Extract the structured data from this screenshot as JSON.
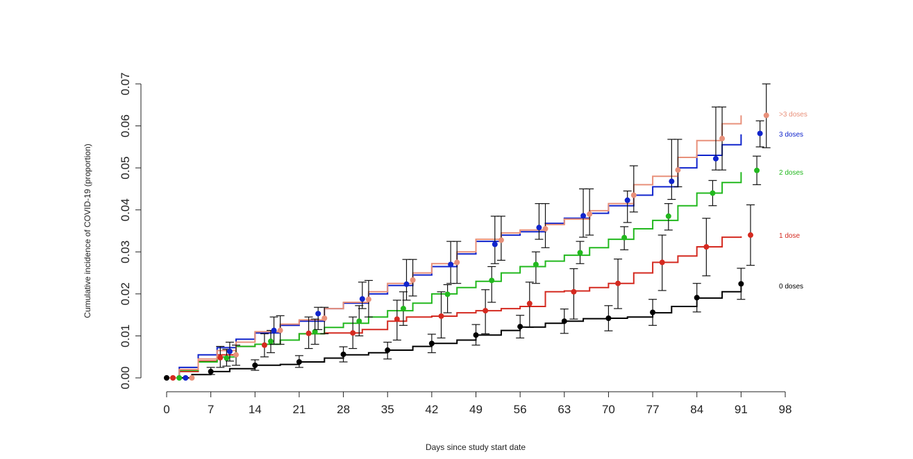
{
  "chart_data": {
    "type": "line",
    "title": "",
    "xlabel": "Days since study start date",
    "ylabel": "Cumulative incidence of COVID-19 (proportion)",
    "xlim": [
      0,
      98
    ],
    "ylim": [
      0,
      0.07
    ],
    "xticks": [
      0,
      7,
      14,
      21,
      28,
      35,
      42,
      49,
      56,
      63,
      70,
      77,
      84,
      91,
      98
    ],
    "yticks": [
      "0.00",
      "0.01",
      "0.02",
      "0.03",
      "0.04",
      "0.05",
      "0.06",
      "0.07"
    ],
    "grid": false,
    "legend": "right",
    "series": [
      {
        "name": "0 doses",
        "color": "#000000",
        "line": [
          [
            0,
            0
          ],
          [
            4,
            0.0008
          ],
          [
            7,
            0.0015
          ],
          [
            10,
            0.0022
          ],
          [
            14,
            0.003
          ],
          [
            18,
            0.0032
          ],
          [
            21,
            0.0038
          ],
          [
            25,
            0.0047
          ],
          [
            28,
            0.0055
          ],
          [
            32,
            0.006
          ],
          [
            35,
            0.0066
          ],
          [
            39,
            0.0075
          ],
          [
            42,
            0.0082
          ],
          [
            46,
            0.009
          ],
          [
            49,
            0.0102
          ],
          [
            53,
            0.0113
          ],
          [
            56,
            0.0121
          ],
          [
            60,
            0.013
          ],
          [
            63,
            0.0135
          ],
          [
            66,
            0.0141
          ],
          [
            70,
            0.0142
          ],
          [
            73,
            0.0145
          ],
          [
            77,
            0.0155
          ],
          [
            80,
            0.017
          ],
          [
            84,
            0.019
          ],
          [
            88,
            0.0205
          ],
          [
            91,
            0.022
          ]
        ],
        "points": [
          {
            "x": 0,
            "y": 0,
            "lo": 0,
            "hi": 0
          },
          {
            "x": 7,
            "y": 0.0015,
            "lo": 0.0008,
            "hi": 0.0025
          },
          {
            "x": 14,
            "y": 0.003,
            "lo": 0.0018,
            "hi": 0.0043
          },
          {
            "x": 21,
            "y": 0.0038,
            "lo": 0.0025,
            "hi": 0.0053
          },
          {
            "x": 28,
            "y": 0.0056,
            "lo": 0.0038,
            "hi": 0.0074
          },
          {
            "x": 35,
            "y": 0.0066,
            "lo": 0.0045,
            "hi": 0.0085
          },
          {
            "x": 42,
            "y": 0.0082,
            "lo": 0.006,
            "hi": 0.0104
          },
          {
            "x": 49,
            "y": 0.0102,
            "lo": 0.0078,
            "hi": 0.0127
          },
          {
            "x": 56,
            "y": 0.0122,
            "lo": 0.0095,
            "hi": 0.0149
          },
          {
            "x": 63,
            "y": 0.0135,
            "lo": 0.0106,
            "hi": 0.0164
          },
          {
            "x": 70,
            "y": 0.0142,
            "lo": 0.0112,
            "hi": 0.0172
          },
          {
            "x": 77,
            "y": 0.0156,
            "lo": 0.0125,
            "hi": 0.0187
          },
          {
            "x": 84,
            "y": 0.0191,
            "lo": 0.0157,
            "hi": 0.0225
          },
          {
            "x": 91,
            "y": 0.0224,
            "lo": 0.0187,
            "hi": 0.0261
          }
        ]
      },
      {
        "name": "1 dose",
        "color": "#d42a20",
        "line": [
          [
            0,
            0
          ],
          [
            2,
            0.0015
          ],
          [
            5,
            0.004
          ],
          [
            8,
            0.0055
          ],
          [
            11,
            0.0075
          ],
          [
            14,
            0.008
          ],
          [
            18,
            0.009
          ],
          [
            21,
            0.0105
          ],
          [
            25,
            0.0107
          ],
          [
            28,
            0.0107
          ],
          [
            31,
            0.0115
          ],
          [
            35,
            0.0135
          ],
          [
            38,
            0.0145
          ],
          [
            42,
            0.0147
          ],
          [
            46,
            0.0155
          ],
          [
            49,
            0.016
          ],
          [
            53,
            0.0165
          ],
          [
            56,
            0.017
          ],
          [
            60,
            0.0205
          ],
          [
            63,
            0.0207
          ],
          [
            67,
            0.0215
          ],
          [
            70,
            0.0225
          ],
          [
            74,
            0.025
          ],
          [
            77,
            0.0275
          ],
          [
            81,
            0.029
          ],
          [
            84,
            0.0312
          ],
          [
            88,
            0.0335
          ],
          [
            91,
            0.0337
          ]
        ],
        "points": [
          {
            "x": 1,
            "y": 0,
            "lo": 0,
            "hi": 0
          },
          {
            "x": 8.5,
            "y": 0.0048,
            "lo": 0.0025,
            "hi": 0.0075
          },
          {
            "x": 15.5,
            "y": 0.0078,
            "lo": 0.005,
            "hi": 0.0105
          },
          {
            "x": 22.5,
            "y": 0.0106,
            "lo": 0.007,
            "hi": 0.0145
          },
          {
            "x": 29.5,
            "y": 0.0107,
            "lo": 0.007,
            "hi": 0.0145
          },
          {
            "x": 36.5,
            "y": 0.014,
            "lo": 0.009,
            "hi": 0.0185
          },
          {
            "x": 43.5,
            "y": 0.0147,
            "lo": 0.0095,
            "hi": 0.0205
          },
          {
            "x": 50.5,
            "y": 0.016,
            "lo": 0.0105,
            "hi": 0.021
          },
          {
            "x": 57.5,
            "y": 0.0177,
            "lo": 0.012,
            "hi": 0.0228
          },
          {
            "x": 64.5,
            "y": 0.0205,
            "lo": 0.014,
            "hi": 0.026
          },
          {
            "x": 71.5,
            "y": 0.0225,
            "lo": 0.0165,
            "hi": 0.0283
          },
          {
            "x": 78.5,
            "y": 0.0275,
            "lo": 0.0208,
            "hi": 0.034
          },
          {
            "x": 85.5,
            "y": 0.0312,
            "lo": 0.0243,
            "hi": 0.038
          },
          {
            "x": 92.5,
            "y": 0.034,
            "lo": 0.0268,
            "hi": 0.0412
          }
        ]
      },
      {
        "name": "2 doses",
        "color": "#22b81e",
        "line": [
          [
            0,
            0
          ],
          [
            2,
            0.0018
          ],
          [
            5,
            0.0038
          ],
          [
            8,
            0.005
          ],
          [
            11,
            0.0075
          ],
          [
            14,
            0.008
          ],
          [
            18,
            0.009
          ],
          [
            21,
            0.0105
          ],
          [
            25,
            0.012
          ],
          [
            28,
            0.013
          ],
          [
            32,
            0.0145
          ],
          [
            35,
            0.016
          ],
          [
            39,
            0.0178
          ],
          [
            42,
            0.02
          ],
          [
            46,
            0.0215
          ],
          [
            49,
            0.023
          ],
          [
            53,
            0.025
          ],
          [
            56,
            0.0265
          ],
          [
            60,
            0.0278
          ],
          [
            63,
            0.0292
          ],
          [
            67,
            0.031
          ],
          [
            70,
            0.033
          ],
          [
            74,
            0.0355
          ],
          [
            77,
            0.0375
          ],
          [
            81,
            0.041
          ],
          [
            84,
            0.044
          ],
          [
            88,
            0.0465
          ],
          [
            91,
            0.049
          ]
        ],
        "points": [
          {
            "x": 2,
            "y": 0,
            "lo": 0,
            "hi": 0
          },
          {
            "x": 9.5,
            "y": 0.0047,
            "lo": 0.0028,
            "hi": 0.0068
          },
          {
            "x": 16.5,
            "y": 0.0087,
            "lo": 0.006,
            "hi": 0.0113
          },
          {
            "x": 23.5,
            "y": 0.011,
            "lo": 0.008,
            "hi": 0.014
          },
          {
            "x": 30.5,
            "y": 0.0135,
            "lo": 0.01,
            "hi": 0.0172
          },
          {
            "x": 37.5,
            "y": 0.0165,
            "lo": 0.0125,
            "hi": 0.0205
          },
          {
            "x": 44.5,
            "y": 0.0199,
            "lo": 0.0155,
            "hi": 0.0222
          },
          {
            "x": 51.5,
            "y": 0.0232,
            "lo": 0.018,
            "hi": 0.0265
          },
          {
            "x": 58.5,
            "y": 0.027,
            "lo": 0.0225,
            "hi": 0.03
          },
          {
            "x": 65.5,
            "y": 0.0298,
            "lo": 0.0272,
            "hi": 0.0325
          },
          {
            "x": 72.5,
            "y": 0.0334,
            "lo": 0.0305,
            "hi": 0.036
          },
          {
            "x": 79.5,
            "y": 0.0385,
            "lo": 0.0352,
            "hi": 0.0415
          },
          {
            "x": 86.5,
            "y": 0.044,
            "lo": 0.041,
            "hi": 0.047
          },
          {
            "x": 93.5,
            "y": 0.0494,
            "lo": 0.046,
            "hi": 0.0528
          }
        ]
      },
      {
        "name": "3 doses",
        "color": "#1024cc",
        "line": [
          [
            0,
            0
          ],
          [
            2,
            0.0025
          ],
          [
            5,
            0.0055
          ],
          [
            8,
            0.0072
          ],
          [
            11,
            0.0092
          ],
          [
            14,
            0.0107
          ],
          [
            18,
            0.0125
          ],
          [
            21,
            0.0135
          ],
          [
            25,
            0.0165
          ],
          [
            28,
            0.0178
          ],
          [
            32,
            0.02
          ],
          [
            35,
            0.022
          ],
          [
            39,
            0.0245
          ],
          [
            42,
            0.0265
          ],
          [
            46,
            0.0295
          ],
          [
            49,
            0.0325
          ],
          [
            53,
            0.034
          ],
          [
            56,
            0.0348
          ],
          [
            60,
            0.0368
          ],
          [
            63,
            0.038
          ],
          [
            67,
            0.0392
          ],
          [
            70,
            0.041
          ],
          [
            74,
            0.0435
          ],
          [
            77,
            0.0455
          ],
          [
            81,
            0.05
          ],
          [
            84,
            0.053
          ],
          [
            88,
            0.0555
          ],
          [
            91,
            0.058
          ]
        ],
        "points": [
          {
            "x": 3,
            "y": 0,
            "lo": 0,
            "hi": 0
          },
          {
            "x": 10,
            "y": 0.0063,
            "lo": 0.004,
            "hi": 0.0085
          },
          {
            "x": 17,
            "y": 0.0113,
            "lo": 0.008,
            "hi": 0.0145
          },
          {
            "x": 24,
            "y": 0.0153,
            "lo": 0.0115,
            "hi": 0.0168
          },
          {
            "x": 31,
            "y": 0.0188,
            "lo": 0.0165,
            "hi": 0.0228
          },
          {
            "x": 38,
            "y": 0.0223,
            "lo": 0.0185,
            "hi": 0.0282
          },
          {
            "x": 45,
            "y": 0.027,
            "lo": 0.0225,
            "hi": 0.0325
          },
          {
            "x": 52,
            "y": 0.0318,
            "lo": 0.0272,
            "hi": 0.0385
          },
          {
            "x": 59,
            "y": 0.0358,
            "lo": 0.033,
            "hi": 0.0415
          },
          {
            "x": 66,
            "y": 0.0386,
            "lo": 0.0335,
            "hi": 0.045
          },
          {
            "x": 73,
            "y": 0.0423,
            "lo": 0.037,
            "hi": 0.0445
          },
          {
            "x": 80,
            "y": 0.0468,
            "lo": 0.0425,
            "hi": 0.0568
          },
          {
            "x": 87,
            "y": 0.0522,
            "lo": 0.0495,
            "hi": 0.0645
          },
          {
            "x": 94,
            "y": 0.0582,
            "lo": 0.055,
            "hi": 0.0612
          }
        ]
      },
      {
        "name": ">3 doses",
        "color": "#e8907a",
        "line": [
          [
            0,
            0
          ],
          [
            2,
            0.002
          ],
          [
            5,
            0.0045
          ],
          [
            8,
            0.0065
          ],
          [
            11,
            0.0085
          ],
          [
            14,
            0.011
          ],
          [
            18,
            0.0128
          ],
          [
            21,
            0.0138
          ],
          [
            25,
            0.0165
          ],
          [
            28,
            0.018
          ],
          [
            32,
            0.0205
          ],
          [
            35,
            0.0225
          ],
          [
            39,
            0.025
          ],
          [
            42,
            0.0272
          ],
          [
            46,
            0.03
          ],
          [
            49,
            0.033
          ],
          [
            53,
            0.0345
          ],
          [
            56,
            0.0352
          ],
          [
            60,
            0.0365
          ],
          [
            63,
            0.0378
          ],
          [
            67,
            0.0398
          ],
          [
            70,
            0.0415
          ],
          [
            74,
            0.046
          ],
          [
            77,
            0.048
          ],
          [
            81,
            0.0525
          ],
          [
            84,
            0.0565
          ],
          [
            88,
            0.0605
          ],
          [
            91,
            0.0625
          ]
        ],
        "points": [
          {
            "x": 4,
            "y": 0,
            "lo": 0,
            "hi": 0
          },
          {
            "x": 11,
            "y": 0.0055,
            "lo": 0.003,
            "hi": 0.0078
          },
          {
            "x": 18,
            "y": 0.0113,
            "lo": 0.008,
            "hi": 0.0148
          },
          {
            "x": 25,
            "y": 0.0142,
            "lo": 0.0105,
            "hi": 0.0168
          },
          {
            "x": 32,
            "y": 0.0187,
            "lo": 0.0145,
            "hi": 0.0232
          },
          {
            "x": 39,
            "y": 0.0233,
            "lo": 0.0195,
            "hi": 0.0282
          },
          {
            "x": 46,
            "y": 0.0275,
            "lo": 0.0225,
            "hi": 0.0325
          },
          {
            "x": 53,
            "y": 0.0328,
            "lo": 0.028,
            "hi": 0.0385
          },
          {
            "x": 60,
            "y": 0.0355,
            "lo": 0.031,
            "hi": 0.0415
          },
          {
            "x": 67,
            "y": 0.039,
            "lo": 0.034,
            "hi": 0.045
          },
          {
            "x": 74,
            "y": 0.0435,
            "lo": 0.0395,
            "hi": 0.0505
          },
          {
            "x": 81,
            "y": 0.0495,
            "lo": 0.0455,
            "hi": 0.0568
          },
          {
            "x": 88,
            "y": 0.057,
            "lo": 0.0495,
            "hi": 0.0645
          },
          {
            "x": 95,
            "y": 0.0625,
            "lo": 0.0548,
            "hi": 0.07
          }
        ]
      }
    ]
  }
}
